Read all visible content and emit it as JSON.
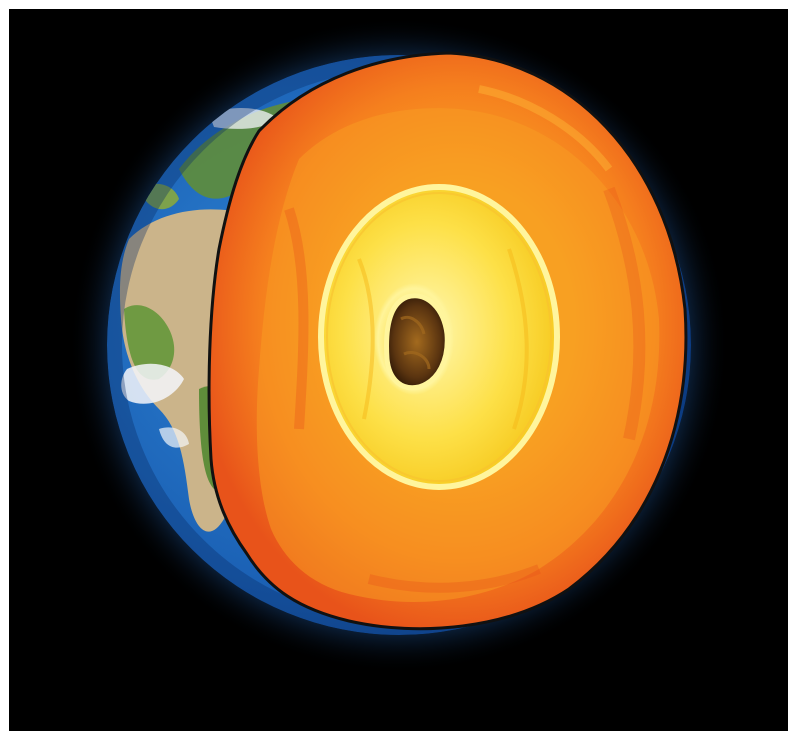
{
  "image": {
    "subject": "earth-cutaway-icon",
    "colors": {
      "space": "#000000",
      "frame": "#ffffff",
      "atmosphere_glow": "#58b8ff",
      "ocean_deep": "#0c3f8a",
      "ocean_light": "#2f86d6",
      "land_green": "#5f8d3a",
      "land_desert": "#cbb48a",
      "cloud": "#f4f6fa",
      "crust_outline": "#111111",
      "mantle_outer": "#e8531a",
      "mantle_mid": "#f57f1e",
      "mantle_inner": "#f9a623",
      "outer_core": "#fde047",
      "outer_core_glow": "#fff59d",
      "inner_core": "#7a4a14",
      "inner_core_dark": "#2b1606"
    }
  }
}
